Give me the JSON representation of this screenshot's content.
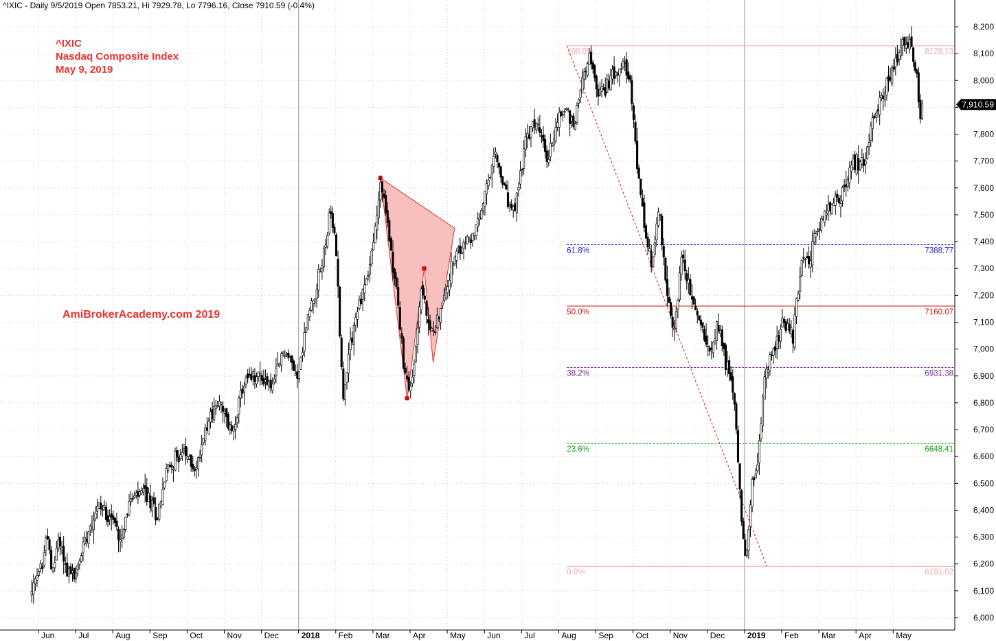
{
  "header": {
    "info": "^IXIC - Daily 9/5/2019 Open 7853.21, Hi 7929.78, Lo 7796.16, Close 7910.59 (-0.4%)"
  },
  "annotations": {
    "ticker": "^IXIC",
    "index_name": "Nasdaq Composite Index",
    "date": "May 9, 2019",
    "watermark": "AmiBrokerAcademy.com  2019"
  },
  "colors": {
    "candles": "#000000",
    "grid": "#c8c8c8",
    "pattern_fill": "#f7b8b8",
    "pattern_points": "#e00000",
    "fib_100": "#f4a6ad",
    "fib_618": "#1a1acc",
    "fib_500": "#cc1111",
    "fib_382": "#7a1f99",
    "fib_236": "#11a011",
    "fib_000": "#f4a6ad",
    "trend_line": "#e00000",
    "watermark": "#e8322d"
  },
  "chart_data": {
    "type": "candlestick",
    "title": "^IXIC - Daily 9/5/2019 Open 7853.21, Hi 7929.78, Lo 7796.16, Close 7910.59 (-0.4%)",
    "series_name": "^IXIC",
    "y_axis": {
      "range": [
        5980,
        8250
      ],
      "ticks": [
        "6,000",
        "6,100",
        "6,200",
        "6,300",
        "6,400",
        "6,500",
        "6,600",
        "6,700",
        "6,800",
        "6,900",
        "7,000",
        "7,100",
        "7,200",
        "7,300",
        "7,400",
        "7,500",
        "7,600",
        "7,700",
        "7,800",
        "7,900",
        "8,000",
        "8,100",
        "8,200"
      ],
      "last_value_label": "7,910.59",
      "last_value": 7910.59
    },
    "x_axis": {
      "labels": [
        "Jun",
        "Jul",
        "Aug",
        "Sep",
        "Oct",
        "Nov",
        "Dec",
        "2018",
        "Feb",
        "Mar",
        "Apr",
        "May",
        "Jun",
        "Jul",
        "Aug",
        "Sep",
        "Oct",
        "Nov",
        "Dec",
        "2019",
        "Feb",
        "Mar",
        "Apr",
        "May"
      ],
      "bold_labels": [
        "2018",
        "2019"
      ],
      "month_index": [
        0,
        1,
        2,
        3,
        4,
        5,
        6,
        7,
        8,
        9,
        10,
        11,
        12,
        13,
        14,
        15,
        16,
        17,
        18,
        19,
        20,
        21,
        22,
        23
      ],
      "range_months": [
        -0.22,
        24.4
      ]
    },
    "price_path": [
      [
        -0.18,
        6090
      ],
      [
        0.1,
        6200
      ],
      [
        0.25,
        6320
      ],
      [
        0.35,
        6150
      ],
      [
        0.55,
        6300
      ],
      [
        0.75,
        6180
      ],
      [
        1.0,
        6150
      ],
      [
        1.25,
        6300
      ],
      [
        1.6,
        6420
      ],
      [
        1.95,
        6380
      ],
      [
        2.2,
        6300
      ],
      [
        2.45,
        6430
      ],
      [
        2.85,
        6470
      ],
      [
        3.2,
        6380
      ],
      [
        3.45,
        6550
      ],
      [
        3.85,
        6620
      ],
      [
        4.25,
        6550
      ],
      [
        4.5,
        6720
      ],
      [
        4.85,
        6800
      ],
      [
        5.2,
        6690
      ],
      [
        5.55,
        6880
      ],
      [
        5.95,
        6900
      ],
      [
        6.3,
        6860
      ],
      [
        6.6,
        7000
      ],
      [
        7.0,
        6900
      ],
      [
        7.2,
        7090
      ],
      [
        7.6,
        7300
      ],
      [
        7.85,
        7500
      ],
      [
        8.0,
        7400
      ],
      [
        8.2,
        6800
      ],
      [
        8.35,
        7000
      ],
      [
        8.6,
        7150
      ],
      [
        8.9,
        7300
      ],
      [
        9.1,
        7480
      ],
      [
        9.2,
        7630
      ],
      [
        9.4,
        7460
      ],
      [
        9.65,
        7200
      ],
      [
        9.85,
        6900
      ],
      [
        10.05,
        6860
      ],
      [
        10.3,
        7230
      ],
      [
        10.55,
        7050
      ],
      [
        10.85,
        7150
      ],
      [
        11.1,
        7300
      ],
      [
        11.4,
        7380
      ],
      [
        11.75,
        7430
      ],
      [
        12.0,
        7560
      ],
      [
        12.3,
        7720
      ],
      [
        12.6,
        7560
      ],
      [
        12.8,
        7500
      ],
      [
        13.1,
        7770
      ],
      [
        13.4,
        7850
      ],
      [
        13.7,
        7700
      ],
      [
        13.95,
        7850
      ],
      [
        14.2,
        7900
      ],
      [
        14.4,
        7830
      ],
      [
        14.6,
        7980
      ],
      [
        14.8,
        8100
      ],
      [
        15.05,
        7950
      ],
      [
        15.3,
        7980
      ],
      [
        15.55,
        8050
      ],
      [
        15.75,
        8090
      ],
      [
        15.95,
        7950
      ],
      [
        16.1,
        7700
      ],
      [
        16.3,
        7450
      ],
      [
        16.5,
        7300
      ],
      [
        16.7,
        7550
      ],
      [
        16.9,
        7200
      ],
      [
        17.1,
        7050
      ],
      [
        17.3,
        7350
      ],
      [
        17.55,
        7200
      ],
      [
        17.8,
        7100
      ],
      [
        18.05,
        7000
      ],
      [
        18.3,
        7100
      ],
      [
        18.5,
        6950
      ],
      [
        18.7,
        6850
      ],
      [
        18.85,
        6550
      ],
      [
        18.95,
        6300
      ],
      [
        19.05,
        6210
      ],
      [
        19.2,
        6500
      ],
      [
        19.35,
        6550
      ],
      [
        19.55,
        6920
      ],
      [
        19.8,
        7000
      ],
      [
        20.05,
        7100
      ],
      [
        20.3,
        7050
      ],
      [
        20.5,
        7300
      ],
      [
        20.75,
        7350
      ],
      [
        21.0,
        7450
      ],
      [
        21.25,
        7520
      ],
      [
        21.5,
        7550
      ],
      [
        21.7,
        7600
      ],
      [
        21.95,
        7700
      ],
      [
        22.2,
        7680
      ],
      [
        22.45,
        7850
      ],
      [
        22.7,
        7950
      ],
      [
        22.95,
        8020
      ],
      [
        23.15,
        8080
      ],
      [
        23.3,
        8150
      ],
      [
        23.5,
        8120
      ],
      [
        23.65,
        8000
      ],
      [
        23.72,
        7830
      ],
      [
        23.78,
        7910
      ]
    ],
    "harmonic_pattern": {
      "type": "polygon",
      "points": [
        {
          "month": 9.2,
          "value": 7637
        },
        {
          "month": 9.92,
          "value": 6817
        },
        {
          "month": 10.38,
          "value": 7300
        },
        {
          "month": 10.62,
          "value": 6950
        },
        {
          "month": 11.2,
          "value": 7450
        }
      ],
      "marked_points": [
        {
          "month": 9.2,
          "value": 7637
        },
        {
          "month": 9.92,
          "value": 6817
        },
        {
          "month": 10.38,
          "value": 7300
        }
      ]
    },
    "fibonacci_retracement": {
      "start_month": 14.22,
      "levels": [
        {
          "label": "100.0%",
          "value": 8129.13,
          "value_label": "8129.13",
          "color_key": "fib_100",
          "style": "solid"
        },
        {
          "label": "61.8%",
          "value": 7388.77,
          "value_label": "7388.77",
          "color_key": "fib_618",
          "style": "dashed"
        },
        {
          "label": "50.0%",
          "value": 7160.07,
          "value_label": "7160.07",
          "color_key": "fib_500",
          "style": "solid"
        },
        {
          "label": "38.2%",
          "value": 6931.38,
          "value_label": "6931.38",
          "color_key": "fib_382",
          "style": "dashed"
        },
        {
          "label": "23.6%",
          "value": 6648.41,
          "value_label": "6648.41",
          "color_key": "fib_236",
          "style": "dashed"
        },
        {
          "label": "0.0%",
          "value": 6191.02,
          "value_label": "6191.02",
          "color_key": "fib_000",
          "style": "solid"
        }
      ],
      "trend_line": {
        "from": {
          "month": 14.22,
          "value": 8129
        },
        "to": {
          "month": 19.6,
          "value": 6191
        }
      }
    },
    "grid": true
  }
}
